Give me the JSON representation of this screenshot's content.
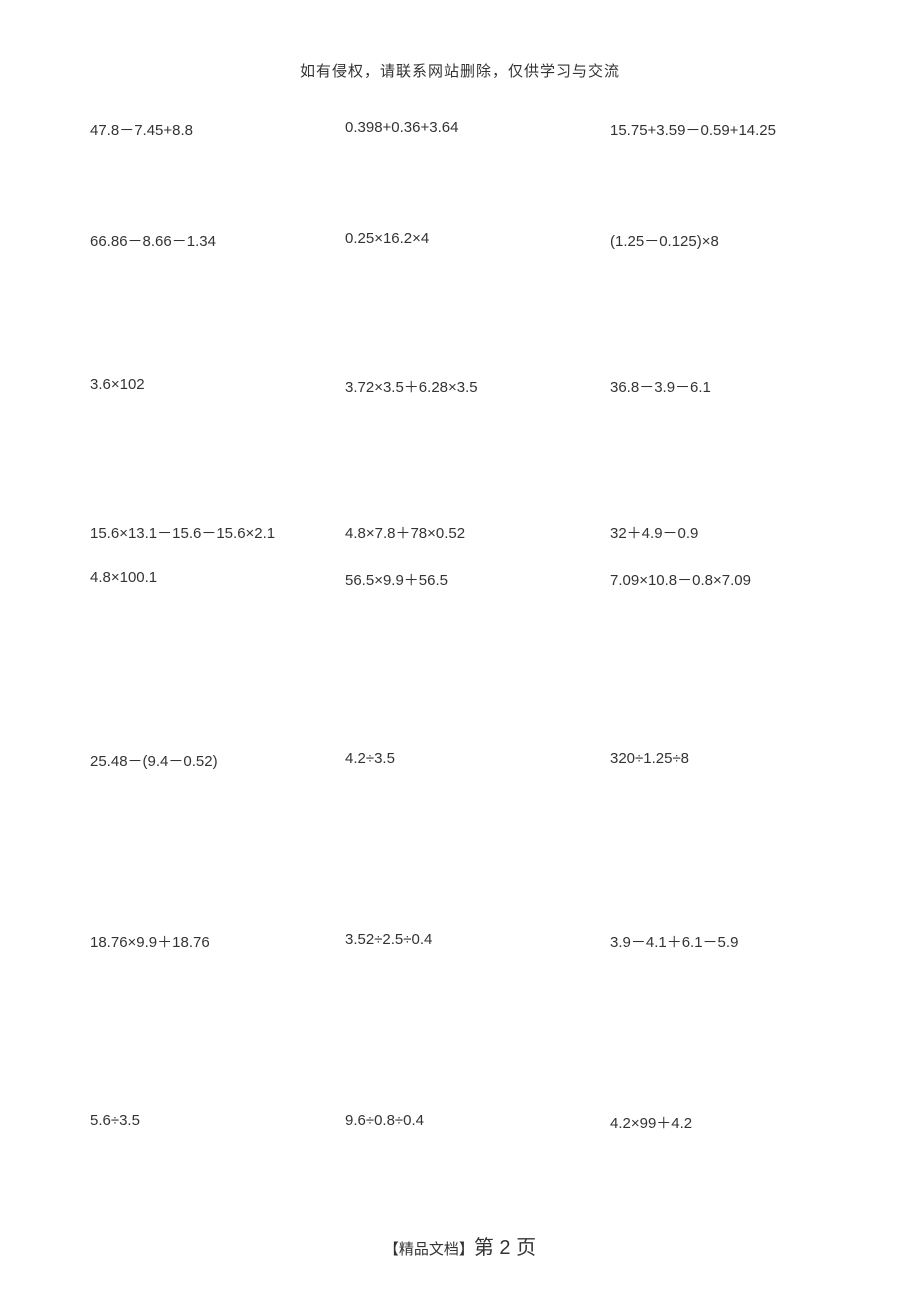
{
  "header_note": "如有侵权，请联系网站删除，仅供学习与交流",
  "rows": [
    {
      "c1": "47.8－7.45+8.8",
      "c2": "0.398+0.36+3.64",
      "c3": "15.75+3.59－0.59+14.25"
    },
    {
      "c1": "66.86－8.66－1.34",
      "c2": "0.25×16.2×4",
      "c3": "(1.25－0.125)×8"
    },
    {
      "c1": "3.6×102",
      "c2": "3.72×3.5＋6.28×3.5",
      "c3": "36.8－3.9－6.1"
    },
    {
      "c1": "15.6×13.1－15.6－15.6×2.1",
      "c2": "4.8×7.8＋78×0.52",
      "c3": "32＋4.9－0.9"
    },
    {
      "c1": "4.8×100.1",
      "c2": "56.5×9.9＋56.5",
      "c3": "7.09×10.8－0.8×7.09"
    },
    {
      "c1": "25.48－(9.4－0.52)",
      "c2": "4.2÷3.5",
      "c3": "320÷1.25÷8"
    },
    {
      "c1": "18.76×9.9＋18.76",
      "c2": "3.52÷2.5÷0.4",
      "c3": "3.9－4.1＋6.1－5.9"
    },
    {
      "c1": "5.6÷3.5",
      "c2": "9.6÷0.8÷0.4",
      "c3": "4.2×99＋4.2"
    }
  ],
  "footer_prefix": "【精品文档】",
  "footer_page_label_a": "第",
  "footer_page_num": " 2 ",
  "footer_page_label_b": "页"
}
